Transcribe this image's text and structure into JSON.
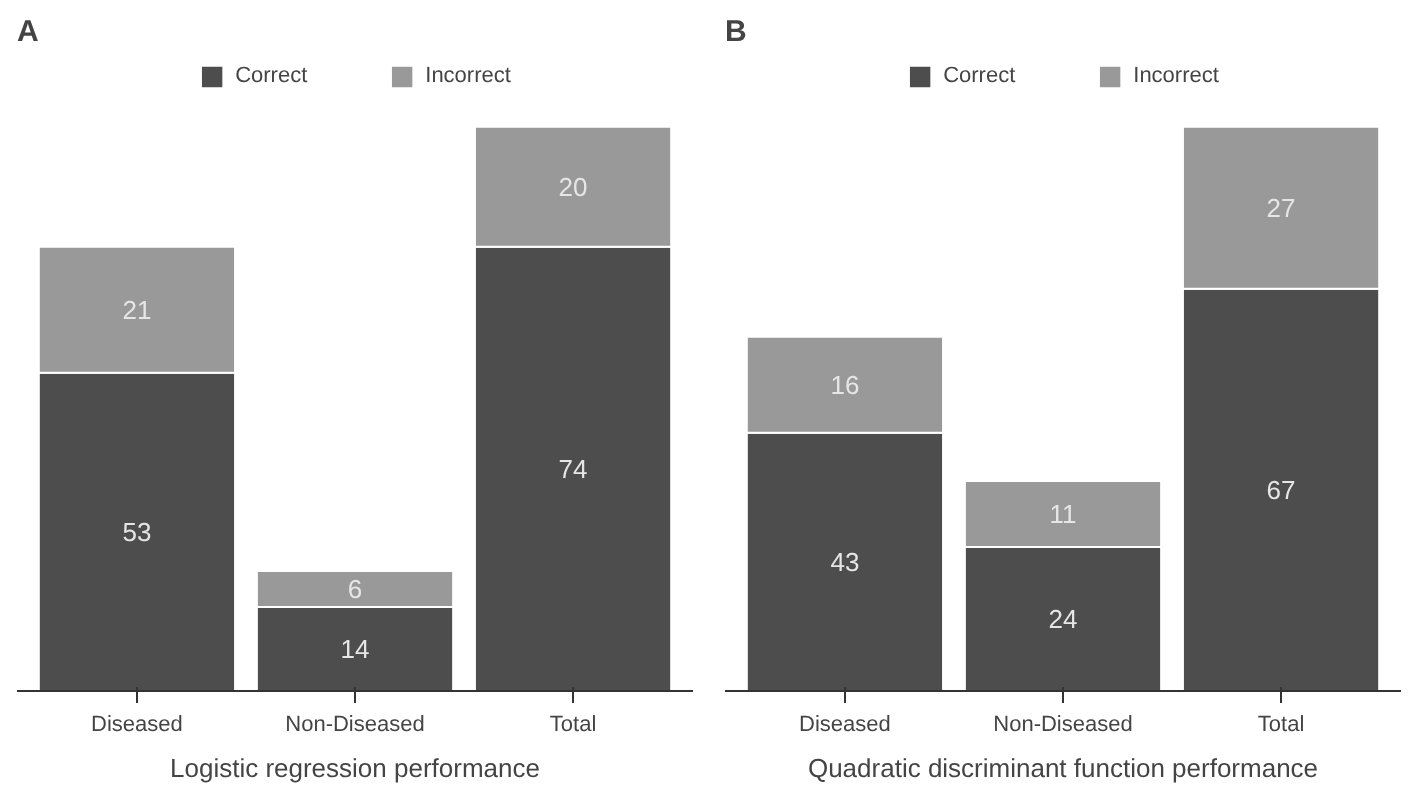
{
  "chart_data": [
    {
      "type": "bar",
      "title": "A",
      "xlabel": "Logistic regression performance",
      "categories": [
        "Diseased",
        "Non-Diseased",
        "Total"
      ],
      "stacked": true,
      "data_labels": true,
      "legend": "top",
      "series": [
        {
          "name": "Correct",
          "color": "#4d4d4d",
          "values": [
            53,
            14,
            74
          ]
        },
        {
          "name": "Incorrect",
          "color": "#999999",
          "values": [
            21,
            6,
            20
          ]
        }
      ]
    },
    {
      "type": "bar",
      "title": "B",
      "xlabel": "Quadratic discriminant function performance",
      "categories": [
        "Diseased",
        "Non-Diseased",
        "Total"
      ],
      "stacked": true,
      "data_labels": true,
      "legend": "top",
      "series": [
        {
          "name": "Correct",
          "color": "#4d4d4d",
          "values": [
            43,
            24,
            67
          ]
        },
        {
          "name": "Incorrect",
          "color": "#999999",
          "values": [
            16,
            11,
            27
          ]
        }
      ]
    }
  ]
}
